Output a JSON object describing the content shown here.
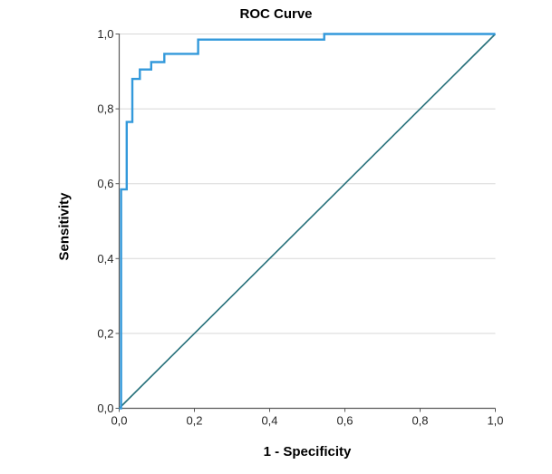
{
  "chart_data": {
    "type": "line",
    "title": "ROC Curve",
    "xlabel": "1 - Specificity",
    "ylabel": "Sensitivity",
    "xlim": [
      0,
      1
    ],
    "ylim": [
      0,
      1
    ],
    "grid": "horizontal-only",
    "legend": "none",
    "x_ticks": {
      "values": [
        0,
        0.2,
        0.4,
        0.6,
        0.8,
        1.0
      ],
      "labels": [
        "0,0",
        "0,2",
        "0,4",
        "0,6",
        "0,8",
        "1,0"
      ]
    },
    "y_ticks": {
      "values": [
        0,
        0.2,
        0.4,
        0.6,
        0.8,
        1.0
      ],
      "labels": [
        "0,0",
        "0,2",
        "0,4",
        "0,6",
        "0,8",
        "1,0"
      ]
    },
    "series": [
      {
        "name": "roc-curve",
        "color": "#3399DB",
        "stroke_width": 2.4,
        "points": [
          [
            0.0,
            0.0
          ],
          [
            0.005,
            0.0
          ],
          [
            0.005,
            0.585
          ],
          [
            0.02,
            0.585
          ],
          [
            0.02,
            0.765
          ],
          [
            0.035,
            0.765
          ],
          [
            0.035,
            0.88
          ],
          [
            0.055,
            0.88
          ],
          [
            0.055,
            0.905
          ],
          [
            0.085,
            0.905
          ],
          [
            0.085,
            0.925
          ],
          [
            0.12,
            0.925
          ],
          [
            0.12,
            0.947
          ],
          [
            0.21,
            0.947
          ],
          [
            0.21,
            0.985
          ],
          [
            0.545,
            0.985
          ],
          [
            0.545,
            1.0
          ],
          [
            1.0,
            1.0
          ]
        ]
      },
      {
        "name": "reference-diagonal",
        "color": "#26707A",
        "stroke_width": 1.6,
        "points": [
          [
            0.0,
            0.0
          ],
          [
            1.0,
            1.0
          ]
        ]
      }
    ]
  },
  "colors": {
    "axis": "#595959",
    "grid": "#D8D8D8",
    "tick_label": "#262626",
    "background": "#FFFFFF"
  }
}
